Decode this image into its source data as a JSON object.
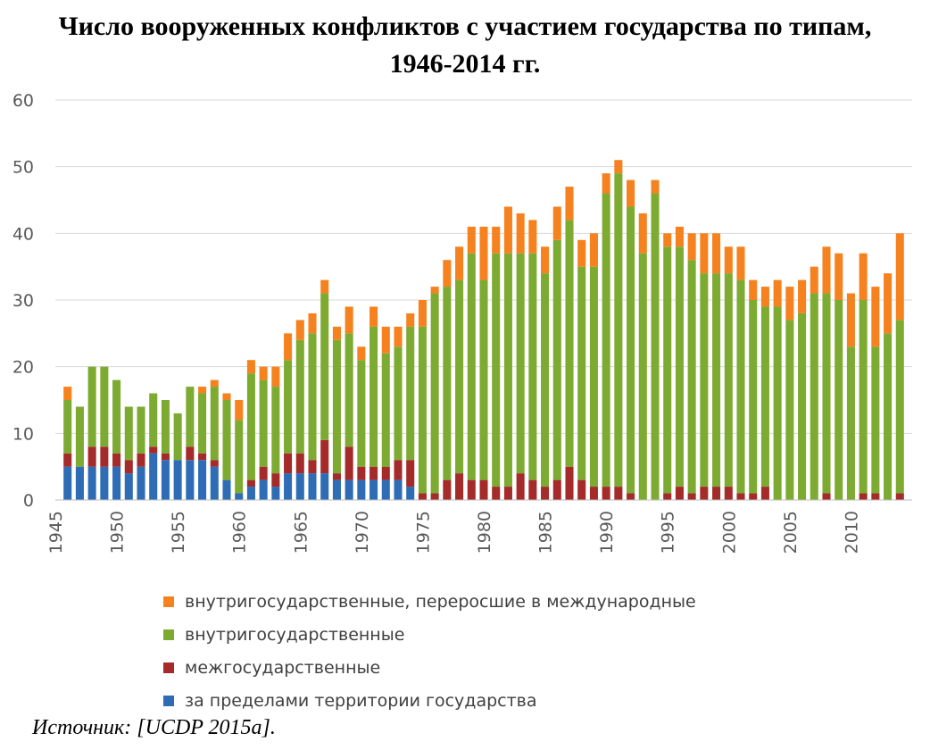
{
  "chart_data": {
    "type": "bar",
    "stacked": true,
    "title": "Число вооруженных конфликтов с участием государства по типам,",
    "subtitle": "1946-2014 гг.",
    "xlabel": "",
    "ylabel": "",
    "ylim": [
      0,
      60
    ],
    "yticks": [
      0,
      10,
      20,
      30,
      40,
      50,
      60
    ],
    "xticks": [
      1945,
      1950,
      1955,
      1960,
      1965,
      1970,
      1975,
      1980,
      1985,
      1990,
      1995,
      2000,
      2005,
      2010
    ],
    "grid": true,
    "legend_position": "bottom",
    "x": [
      1946,
      1947,
      1948,
      1949,
      1950,
      1951,
      1952,
      1953,
      1954,
      1955,
      1956,
      1957,
      1958,
      1959,
      1960,
      1961,
      1962,
      1963,
      1964,
      1965,
      1966,
      1967,
      1968,
      1969,
      1970,
      1971,
      1972,
      1973,
      1974,
      1975,
      1976,
      1977,
      1978,
      1979,
      1980,
      1981,
      1982,
      1983,
      1984,
      1985,
      1986,
      1987,
      1988,
      1989,
      1990,
      1991,
      1992,
      1993,
      1994,
      1995,
      1996,
      1997,
      1998,
      1999,
      2000,
      2001,
      2002,
      2003,
      2004,
      2005,
      2006,
      2007,
      2008,
      2009,
      2010,
      2011,
      2012,
      2013,
      2014
    ],
    "series": [
      {
        "name": "за пределами территории государства",
        "color": "#2e6db5",
        "values": [
          5,
          5,
          5,
          5,
          5,
          4,
          5,
          7,
          6,
          6,
          6,
          6,
          5,
          3,
          1,
          2,
          3,
          2,
          4,
          4,
          4,
          4,
          3,
          3,
          3,
          3,
          3,
          3,
          2,
          0,
          0,
          0,
          0,
          0,
          0,
          0,
          0,
          0,
          0,
          0,
          0,
          0,
          0,
          0,
          0,
          0,
          0,
          0,
          0,
          0,
          0,
          0,
          0,
          0,
          0,
          0,
          0,
          0,
          0,
          0,
          0,
          0,
          0,
          0,
          0,
          0,
          0,
          0,
          0
        ]
      },
      {
        "name": "межгосударственные",
        "color": "#a52a2a",
        "values": [
          2,
          0,
          3,
          3,
          2,
          2,
          2,
          1,
          1,
          0,
          2,
          1,
          1,
          0,
          0,
          1,
          2,
          2,
          3,
          3,
          2,
          5,
          1,
          5,
          2,
          2,
          2,
          3,
          4,
          1,
          1,
          3,
          4,
          3,
          3,
          2,
          2,
          4,
          3,
          2,
          3,
          5,
          3,
          2,
          2,
          2,
          1,
          0,
          0,
          1,
          2,
          1,
          2,
          2,
          2,
          1,
          1,
          2,
          0,
          0,
          0,
          0,
          1,
          0,
          0,
          1,
          1,
          0,
          1
        ]
      },
      {
        "name": "внутригосударственные",
        "color": "#7dab32",
        "values": [
          8,
          9,
          12,
          12,
          11,
          8,
          7,
          8,
          8,
          7,
          9,
          9,
          11,
          12,
          11,
          16,
          13,
          13,
          14,
          17,
          19,
          22,
          20,
          17,
          16,
          21,
          17,
          17,
          20,
          25,
          30,
          29,
          29,
          34,
          30,
          35,
          35,
          33,
          34,
          32,
          36,
          37,
          32,
          33,
          44,
          47,
          43,
          37,
          46,
          37,
          36,
          35,
          32,
          32,
          32,
          32,
          29,
          27,
          29,
          27,
          28,
          31,
          30,
          30,
          23,
          29,
          22,
          25,
          26
        ]
      },
      {
        "name": "внутригосударственные, переросшие в международные",
        "color": "#f5821f",
        "values": [
          2,
          0,
          0,
          0,
          0,
          0,
          0,
          0,
          0,
          0,
          0,
          1,
          1,
          1,
          3,
          2,
          2,
          3,
          4,
          3,
          3,
          2,
          2,
          4,
          2,
          3,
          4,
          3,
          2,
          4,
          1,
          4,
          5,
          4,
          8,
          4,
          7,
          6,
          5,
          4,
          5,
          5,
          4,
          5,
          3,
          2,
          4,
          6,
          2,
          2,
          3,
          4,
          6,
          6,
          4,
          5,
          3,
          3,
          4,
          5,
          5,
          4,
          7,
          7,
          8,
          7,
          9,
          9,
          13
        ]
      }
    ]
  },
  "legend": {
    "items": [
      {
        "label": "внутригосударственные, переросшие в международные",
        "color": "#f5821f"
      },
      {
        "label": "внутригосударственные",
        "color": "#7dab32"
      },
      {
        "label": "межгосударственные",
        "color": "#a52a2a"
      },
      {
        "label": "за пределами территории государства",
        "color": "#2e6db5"
      }
    ]
  },
  "source": "Источник: [UCDP 2015a]."
}
